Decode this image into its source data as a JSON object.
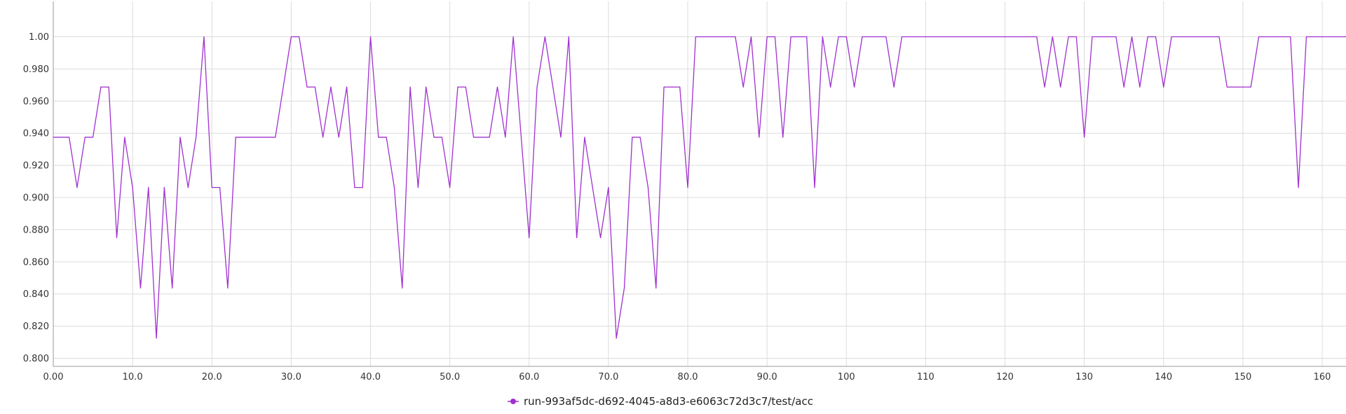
{
  "chart_data": {
    "type": "line",
    "title": "",
    "xlabel": "",
    "ylabel": "",
    "xlim": [
      0,
      163
    ],
    "ylim": [
      0.795,
      1.022
    ],
    "x_ticks": [
      0,
      10,
      20,
      30,
      40,
      50,
      60,
      70,
      80,
      90,
      100,
      110,
      120,
      130,
      140,
      150,
      160
    ],
    "x_tick_labels": [
      "0.00",
      "10.0",
      "20.0",
      "30.0",
      "40.0",
      "50.0",
      "60.0",
      "70.0",
      "80.0",
      "90.0",
      "100",
      "110",
      "120",
      "130",
      "140",
      "150",
      "160"
    ],
    "y_ticks": [
      0.8,
      0.82,
      0.84,
      0.86,
      0.88,
      0.9,
      0.92,
      0.94,
      0.96,
      0.98,
      1.0
    ],
    "y_tick_labels": [
      "0.800",
      "0.820",
      "0.840",
      "0.860",
      "0.880",
      "0.900",
      "0.920",
      "0.940",
      "0.960",
      "0.980",
      "1.00"
    ],
    "grid": true,
    "legend_position": "bottom-center",
    "series": [
      {
        "name": "run-993af5dc-d692-4045-a8d3-e6063c72d3c7/test/acc",
        "color": "#a030d0",
        "values": [
          [
            0,
            0.9375
          ],
          [
            1,
            0.9375
          ],
          [
            2,
            0.9375
          ],
          [
            3,
            0.90625
          ],
          [
            4,
            0.9375
          ],
          [
            5,
            0.9375
          ],
          [
            6,
            0.96875
          ],
          [
            7,
            0.96875
          ],
          [
            8,
            0.875
          ],
          [
            9,
            0.9375
          ],
          [
            10,
            0.90625
          ],
          [
            11,
            0.84375
          ],
          [
            12,
            0.90625
          ],
          [
            13,
            0.8125
          ],
          [
            14,
            0.90625
          ],
          [
            15,
            0.84375
          ],
          [
            16,
            0.9375
          ],
          [
            17,
            0.90625
          ],
          [
            18,
            0.9375
          ],
          [
            19,
            1.0
          ],
          [
            20,
            0.90625
          ],
          [
            21,
            0.90625
          ],
          [
            22,
            0.84375
          ],
          [
            23,
            0.9375
          ],
          [
            24,
            0.9375
          ],
          [
            25,
            0.9375
          ],
          [
            26,
            0.9375
          ],
          [
            27,
            0.9375
          ],
          [
            28,
            0.9375
          ],
          [
            29,
            0.96875
          ],
          [
            30,
            1.0
          ],
          [
            31,
            1.0
          ],
          [
            32,
            0.96875
          ],
          [
            33,
            0.96875
          ],
          [
            34,
            0.9375
          ],
          [
            35,
            0.96875
          ],
          [
            36,
            0.9375
          ],
          [
            37,
            0.96875
          ],
          [
            38,
            0.90625
          ],
          [
            39,
            0.90625
          ],
          [
            40,
            1.0
          ],
          [
            41,
            0.9375
          ],
          [
            42,
            0.9375
          ],
          [
            43,
            0.90625
          ],
          [
            44,
            0.84375
          ],
          [
            45,
            0.96875
          ],
          [
            46,
            0.90625
          ],
          [
            47,
            0.96875
          ],
          [
            48,
            0.9375
          ],
          [
            49,
            0.9375
          ],
          [
            50,
            0.90625
          ],
          [
            51,
            0.96875
          ],
          [
            52,
            0.96875
          ],
          [
            53,
            0.9375
          ],
          [
            54,
            0.9375
          ],
          [
            55,
            0.9375
          ],
          [
            56,
            0.96875
          ],
          [
            57,
            0.9375
          ],
          [
            58,
            1.0
          ],
          [
            59,
            0.9375
          ],
          [
            60,
            0.875
          ],
          [
            61,
            0.96875
          ],
          [
            62,
            1.0
          ],
          [
            63,
            0.96875
          ],
          [
            64,
            0.9375
          ],
          [
            65,
            1.0
          ],
          [
            66,
            0.875
          ],
          [
            67,
            0.9375
          ],
          [
            68,
            0.90625
          ],
          [
            69,
            0.875
          ],
          [
            70,
            0.90625
          ],
          [
            71,
            0.8125
          ],
          [
            72,
            0.84375
          ],
          [
            73,
            0.9375
          ],
          [
            74,
            0.9375
          ],
          [
            75,
            0.90625
          ],
          [
            76,
            0.84375
          ],
          [
            77,
            0.96875
          ],
          [
            78,
            0.96875
          ],
          [
            79,
            0.96875
          ],
          [
            80,
            0.90625
          ],
          [
            81,
            1.0
          ],
          [
            82,
            1.0
          ],
          [
            83,
            1.0
          ],
          [
            84,
            1.0
          ],
          [
            85,
            1.0
          ],
          [
            86,
            1.0
          ],
          [
            87,
            0.96875
          ],
          [
            88,
            1.0
          ],
          [
            89,
            0.9375
          ],
          [
            90,
            1.0
          ],
          [
            91,
            1.0
          ],
          [
            92,
            0.9375
          ],
          [
            93,
            1.0
          ],
          [
            94,
            1.0
          ],
          [
            95,
            1.0
          ],
          [
            96,
            0.90625
          ],
          [
            97,
            1.0
          ],
          [
            98,
            0.96875
          ],
          [
            99,
            1.0
          ],
          [
            100,
            1.0
          ],
          [
            101,
            0.96875
          ],
          [
            102,
            1.0
          ],
          [
            103,
            1.0
          ],
          [
            104,
            1.0
          ],
          [
            105,
            1.0
          ],
          [
            106,
            0.96875
          ],
          [
            107,
            1.0
          ],
          [
            108,
            1.0
          ],
          [
            109,
            1.0
          ],
          [
            110,
            1.0
          ],
          [
            111,
            1.0
          ],
          [
            112,
            1.0
          ],
          [
            113,
            1.0
          ],
          [
            114,
            1.0
          ],
          [
            115,
            1.0
          ],
          [
            116,
            1.0
          ],
          [
            117,
            1.0
          ],
          [
            118,
            1.0
          ],
          [
            119,
            1.0
          ],
          [
            120,
            1.0
          ],
          [
            121,
            1.0
          ],
          [
            122,
            1.0
          ],
          [
            123,
            1.0
          ],
          [
            124,
            1.0
          ],
          [
            125,
            0.96875
          ],
          [
            126,
            1.0
          ],
          [
            127,
            0.96875
          ],
          [
            128,
            1.0
          ],
          [
            129,
            1.0
          ],
          [
            130,
            0.9375
          ],
          [
            131,
            1.0
          ],
          [
            132,
            1.0
          ],
          [
            133,
            1.0
          ],
          [
            134,
            1.0
          ],
          [
            135,
            0.96875
          ],
          [
            136,
            1.0
          ],
          [
            137,
            0.96875
          ],
          [
            138,
            1.0
          ],
          [
            139,
            1.0
          ],
          [
            140,
            0.96875
          ],
          [
            141,
            1.0
          ],
          [
            142,
            1.0
          ],
          [
            143,
            1.0
          ],
          [
            144,
            1.0
          ],
          [
            145,
            1.0
          ],
          [
            146,
            1.0
          ],
          [
            147,
            1.0
          ],
          [
            148,
            0.96875
          ],
          [
            149,
            0.96875
          ],
          [
            150,
            0.96875
          ],
          [
            151,
            0.96875
          ],
          [
            152,
            1.0
          ],
          [
            153,
            1.0
          ],
          [
            154,
            1.0
          ],
          [
            155,
            1.0
          ],
          [
            156,
            1.0
          ],
          [
            157,
            0.90625
          ],
          [
            158,
            1.0
          ],
          [
            159,
            1.0
          ],
          [
            160,
            1.0
          ],
          [
            161,
            1.0
          ],
          [
            162,
            1.0
          ],
          [
            163,
            1.0
          ]
        ]
      }
    ]
  }
}
